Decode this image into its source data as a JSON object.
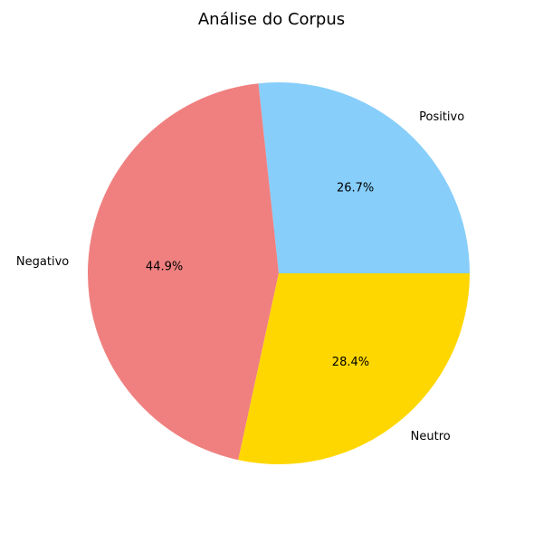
{
  "chart_data": {
    "type": "pie",
    "title": "Análise do Corpus",
    "slices": [
      {
        "label": "Positivo",
        "value": 26.7,
        "pct_label": "26.7%",
        "color": "#87CEFA"
      },
      {
        "label": "Negativo",
        "value": 44.9,
        "pct_label": "44.9%",
        "color": "#F08080"
      },
      {
        "label": "Neutro",
        "value": 28.4,
        "pct_label": "28.4%",
        "color": "#FFD700"
      }
    ],
    "start_angle_deg": 0,
    "direction": "counterclockwise",
    "legend": "none"
  }
}
